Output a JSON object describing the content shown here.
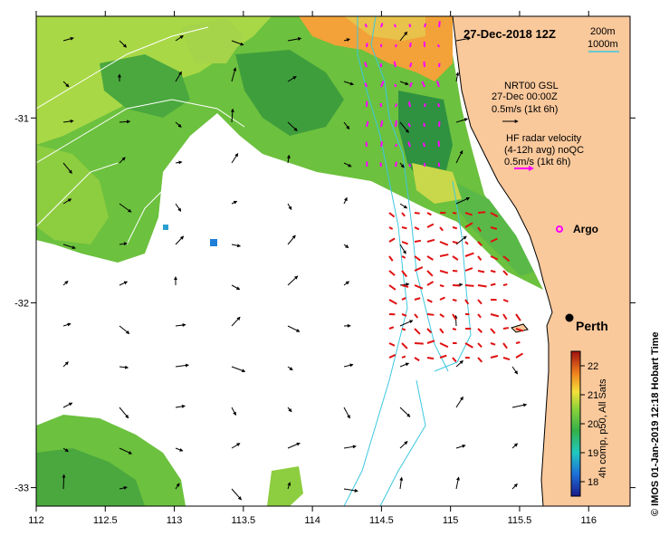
{
  "map": {
    "lon_range": [
      112.0,
      116.3
    ],
    "lat_range": [
      -33.1,
      -30.45
    ],
    "lon_ticks": [
      "112",
      "112.5",
      "113",
      "113.5",
      "114",
      "114.5",
      "115",
      "115.5",
      "116"
    ],
    "lat_ticks": [
      "-31",
      "-32",
      "-33"
    ],
    "ocean_color": "#ffffff",
    "land_color": "#f9c89b",
    "coast_color": "#000000"
  },
  "title": "27-Dec-2018 12Z",
  "isobaths": {
    "labels": [
      "200m",
      "1000m"
    ],
    "color": "#3cc8e0"
  },
  "legend": {
    "gsl_lines": [
      "NRT00 GSL",
      "27-Dec 00:00Z",
      "0.5m/s (1kt 6h)"
    ],
    "gsl_color": "#000000",
    "radar_lines": [
      "HF radar velocity",
      "(4-12h avg) noQC",
      "0.5m/s (1kt 6h)"
    ],
    "radar_color": "#ff00ff"
  },
  "places": {
    "perth": "Perth",
    "argo": "Argo",
    "argo_color": "#ff00ff"
  },
  "colorbar": {
    "ticks": [
      "22",
      "21",
      "20",
      "19",
      "18"
    ],
    "label": "4h comp, p50, All Sats",
    "range": [
      17.5,
      22.5
    ]
  },
  "side_label": "© IMOS 01-Jan-2019 12:18 Hobart Time",
  "hf_radar_color": "#e01010"
}
